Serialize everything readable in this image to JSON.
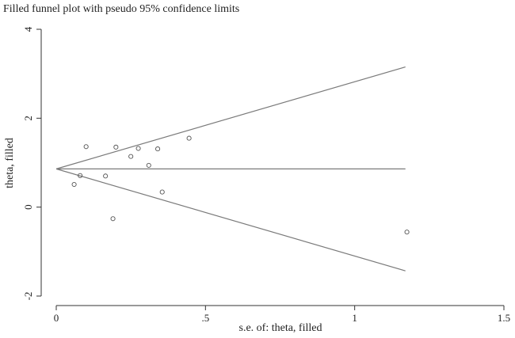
{
  "chart_data": {
    "type": "scatter",
    "title": "Filled funnel plot with pseudo 95% confidence limits",
    "xlabel": "s.e. of: theta, filled",
    "ylabel": "theta, filled",
    "xlim": [
      0,
      1.5
    ],
    "ylim": [
      -2,
      4
    ],
    "x_ticks": [
      {
        "value": 0,
        "label": "0"
      },
      {
        "value": 0.5,
        "label": ".5"
      },
      {
        "value": 1,
        "label": "1"
      },
      {
        "value": 1.5,
        "label": "1.5"
      }
    ],
    "y_ticks": [
      {
        "value": -2,
        "label": "-2"
      },
      {
        "value": 0,
        "label": "0"
      },
      {
        "value": 2,
        "label": "2"
      },
      {
        "value": 4,
        "label": "4"
      }
    ],
    "pooled_estimate": 0.86,
    "limits_max_se": 1.17,
    "points": [
      {
        "x": 0.06,
        "y": 0.51
      },
      {
        "x": 0.08,
        "y": 0.71
      },
      {
        "x": 0.1,
        "y": 1.36
      },
      {
        "x": 0.165,
        "y": 0.7
      },
      {
        "x": 0.19,
        "y": -0.26
      },
      {
        "x": 0.2,
        "y": 1.35
      },
      {
        "x": 0.25,
        "y": 1.14
      },
      {
        "x": 0.275,
        "y": 1.32
      },
      {
        "x": 0.31,
        "y": 0.94
      },
      {
        "x": 0.34,
        "y": 1.31
      },
      {
        "x": 0.355,
        "y": 0.34
      },
      {
        "x": 0.445,
        "y": 1.55
      },
      {
        "x": 1.175,
        "y": -0.56
      }
    ],
    "grid": false,
    "legend": "none"
  }
}
